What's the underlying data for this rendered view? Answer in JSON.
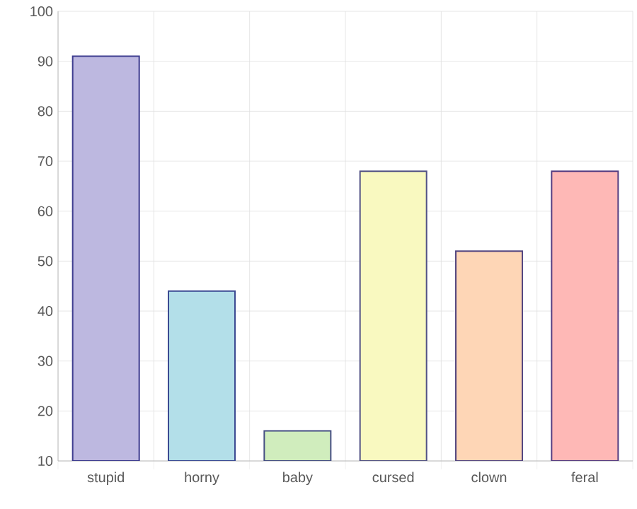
{
  "chart_data": {
    "type": "bar",
    "categories": [
      "stupid",
      "horny",
      "baby",
      "cursed",
      "clown",
      "feral"
    ],
    "values": [
      91,
      44,
      16,
      68,
      52,
      68
    ],
    "colors": [
      "#bdb8e0",
      "#b3dfe9",
      "#d0edbd",
      "#f9f9c0",
      "#fed6b6",
      "#feb8b6"
    ],
    "ylim": [
      10,
      100
    ],
    "yticks": [
      10,
      20,
      30,
      40,
      50,
      60,
      70,
      80,
      90,
      100
    ],
    "grid": true
  }
}
